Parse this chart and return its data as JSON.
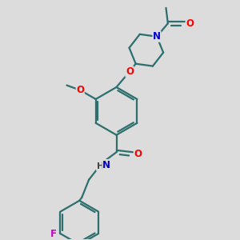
{
  "bg_color": "#dcdcdc",
  "bond_color": "#2d6e6e",
  "atom_colors": {
    "O": "#ff0000",
    "N": "#0000cc",
    "F": "#cc00cc",
    "H": "#444444",
    "C": "#2d6e6e"
  },
  "line_width": 1.6,
  "font_size": 8.5,
  "fig_size": [
    3.0,
    3.0
  ],
  "dpi": 100
}
